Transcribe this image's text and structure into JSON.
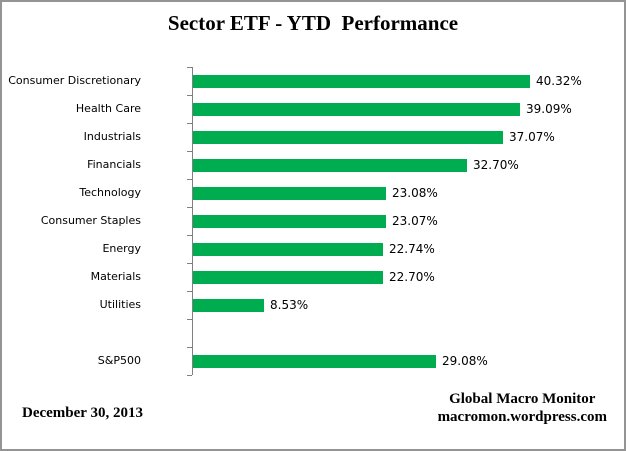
{
  "footer": {
    "date": "December 30, 2013",
    "source_line1": "Global Macro Monitor",
    "source_line2": "macromon.wordpress.com"
  },
  "colors": {
    "bar_green": "#00AC50",
    "axis_gray": "#808080",
    "frame_border": "#949494",
    "text": "#000000"
  },
  "chart_data": {
    "type": "bar",
    "orientation": "horizontal",
    "title": "Sector ETF - YTD  Performance",
    "categories": [
      "Consumer Discretionary",
      "Health Care",
      "Industrials",
      "Financials",
      "Technology",
      "Consumer Staples",
      "Energy",
      "Materials",
      "Utilities",
      "",
      "S&P500"
    ],
    "values": [
      40.32,
      39.09,
      37.07,
      32.7,
      23.08,
      23.07,
      22.74,
      22.7,
      8.53,
      null,
      29.08
    ],
    "value_suffix": "%",
    "value_decimals": 2,
    "data_labels": true,
    "xlim": [
      0,
      50
    ],
    "grid": false,
    "legend": false
  }
}
